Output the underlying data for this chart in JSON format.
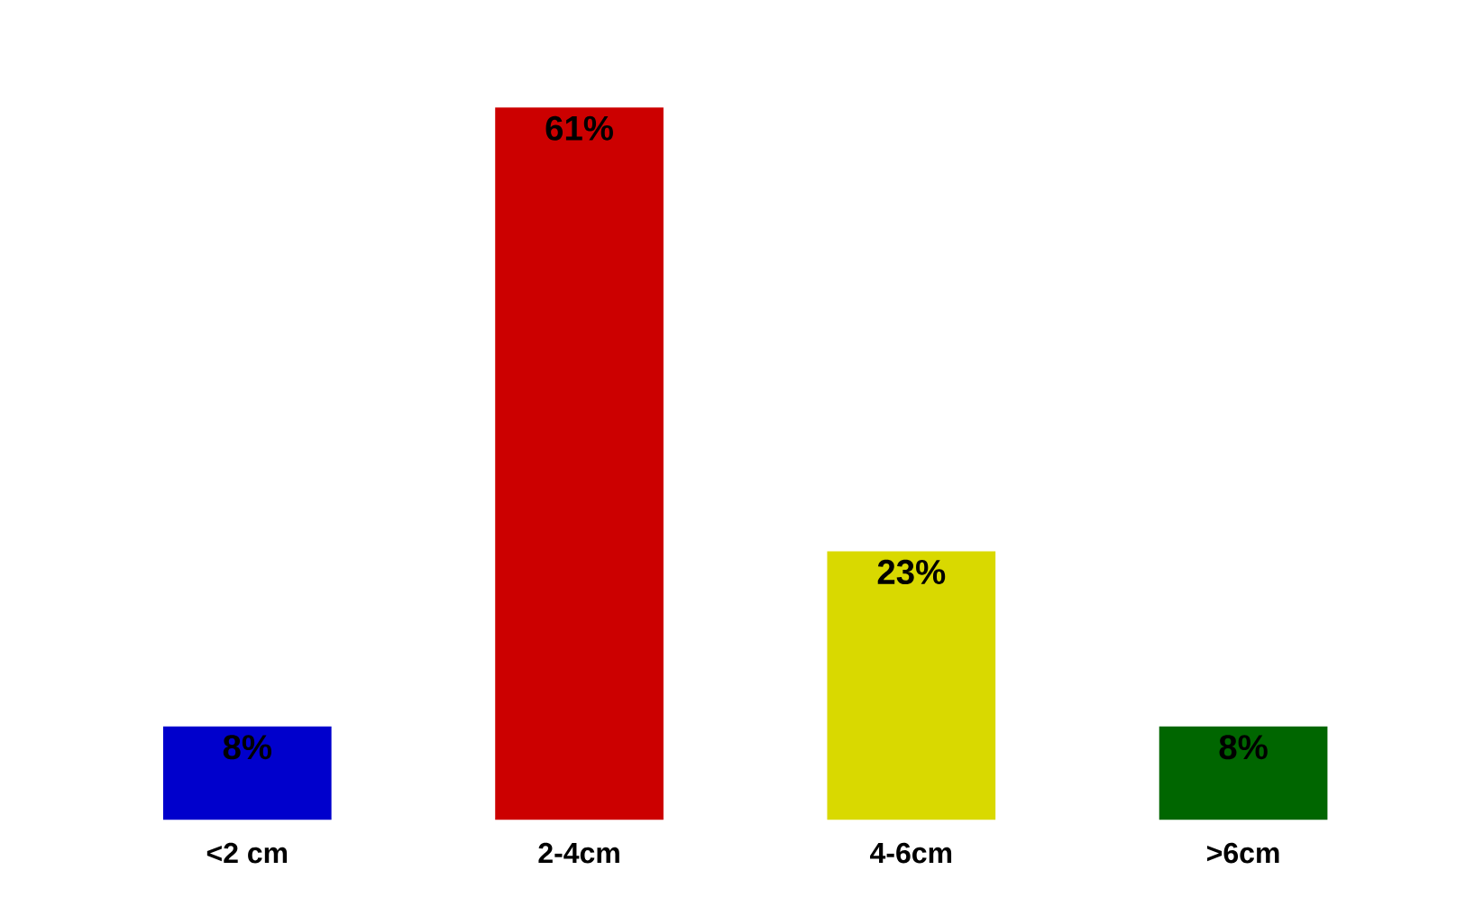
{
  "chart_data": {
    "type": "bar",
    "categories": [
      "<2 cm",
      "2-4cm",
      "4-6cm",
      ">6cm"
    ],
    "values": [
      8,
      61,
      23,
      8
    ],
    "colors": [
      "#0000cc",
      "#cc0000",
      "#d9d900",
      "#006600"
    ],
    "value_labels": [
      "8%",
      "61%",
      "23%",
      "8%"
    ]
  }
}
